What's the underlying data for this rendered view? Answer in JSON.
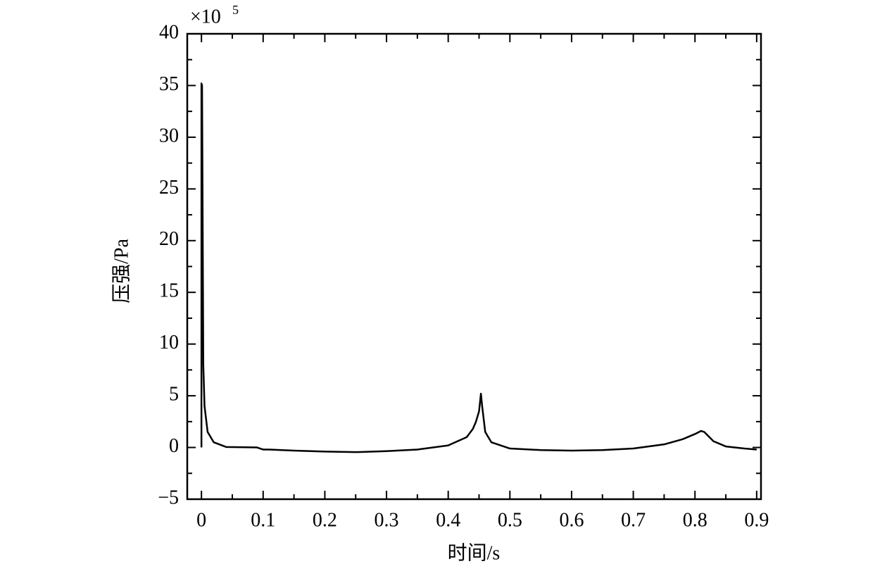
{
  "chart_data": {
    "type": "line",
    "xlabel": "时间/s",
    "ylabel": "压强/Pa",
    "multiplier": {
      "base": "×10",
      "exponent": "5"
    },
    "x": [
      0,
      0,
      0.001,
      0.003,
      0.005,
      0.01,
      0.02,
      0.04,
      0.09,
      0.1,
      0.11,
      0.15,
      0.2,
      0.25,
      0.3,
      0.35,
      0.4,
      0.43,
      0.44,
      0.445,
      0.45,
      0.453,
      0.455,
      0.46,
      0.47,
      0.5,
      0.55,
      0.6,
      0.65,
      0.7,
      0.75,
      0.78,
      0.8,
      0.81,
      0.815,
      0.83,
      0.85,
      0.88,
      0.9
    ],
    "series": [
      {
        "name": "压强",
        "color": "#000000",
        "values": [
          0,
          35.2,
          35,
          8,
          4,
          1.5,
          0.5,
          0.05,
          0,
          -0.2,
          -0.2,
          -0.3,
          -0.4,
          -0.45,
          -0.35,
          -0.2,
          0.2,
          1,
          1.8,
          2.5,
          3.5,
          5.2,
          4,
          1.5,
          0.5,
          -0.1,
          -0.25,
          -0.3,
          -0.25,
          -0.1,
          0.3,
          0.8,
          1.3,
          1.6,
          1.5,
          0.6,
          0.1,
          -0.1,
          -0.2
        ]
      }
    ],
    "xlim": [
      -0.023,
      0.907
    ],
    "ylim": [
      -5,
      40
    ],
    "xticks": [
      0,
      0.1,
      0.2,
      0.3,
      0.4,
      0.5,
      0.6,
      0.7,
      0.8,
      0.9
    ],
    "yticks": [
      {
        "value": -5,
        "label": "−5"
      },
      0,
      5,
      10,
      15,
      20,
      25,
      30,
      35,
      40
    ]
  }
}
